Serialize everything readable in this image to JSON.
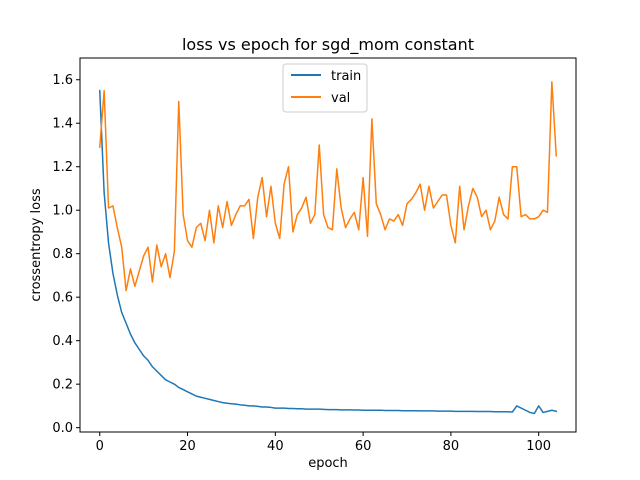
{
  "chart_data": {
    "type": "line",
    "title": "loss vs epoch for sgd_mom constant",
    "xlabel": "epoch",
    "ylabel": "crossentropy loss",
    "xlim": [
      -4.5,
      108.5
    ],
    "ylim": [
      -0.02,
      1.7
    ],
    "xticks": [
      0,
      20,
      40,
      60,
      80,
      100
    ],
    "yticks": [
      0.0,
      0.2,
      0.4,
      0.6,
      0.8,
      1.0,
      1.2,
      1.4,
      1.6
    ],
    "ytick_labels": [
      "0.0",
      "0.2",
      "0.4",
      "0.6",
      "0.8",
      "1.0",
      "1.2",
      "1.4",
      "1.6"
    ],
    "grid": false,
    "legend_position": "top-center",
    "series": [
      {
        "name": "train",
        "color": "#1f77b4",
        "x": [
          0,
          1,
          2,
          3,
          4,
          5,
          6,
          7,
          8,
          9,
          10,
          11,
          12,
          13,
          14,
          15,
          16,
          17,
          18,
          19,
          20,
          21,
          22,
          23,
          24,
          25,
          26,
          27,
          28,
          29,
          30,
          31,
          32,
          33,
          34,
          35,
          36,
          37,
          38,
          39,
          40,
          41,
          42,
          43,
          44,
          45,
          46,
          47,
          48,
          49,
          50,
          51,
          52,
          53,
          54,
          55,
          56,
          57,
          58,
          59,
          60,
          61,
          62,
          63,
          64,
          65,
          66,
          67,
          68,
          69,
          70,
          71,
          72,
          73,
          74,
          75,
          76,
          77,
          78,
          79,
          80,
          81,
          82,
          83,
          84,
          85,
          86,
          87,
          88,
          89,
          90,
          91,
          92,
          93,
          94,
          95,
          96,
          97,
          98,
          99,
          100,
          101,
          102,
          103,
          104
        ],
        "values": [
          1.55,
          1.08,
          0.85,
          0.71,
          0.61,
          0.53,
          0.48,
          0.43,
          0.39,
          0.36,
          0.33,
          0.31,
          0.28,
          0.26,
          0.24,
          0.22,
          0.21,
          0.2,
          0.185,
          0.175,
          0.165,
          0.155,
          0.145,
          0.14,
          0.135,
          0.13,
          0.125,
          0.12,
          0.115,
          0.112,
          0.11,
          0.108,
          0.105,
          0.103,
          0.1,
          0.1,
          0.098,
          0.095,
          0.095,
          0.093,
          0.09,
          0.09,
          0.09,
          0.088,
          0.088,
          0.087,
          0.087,
          0.085,
          0.085,
          0.085,
          0.085,
          0.084,
          0.083,
          0.083,
          0.083,
          0.082,
          0.082,
          0.082,
          0.081,
          0.081,
          0.08,
          0.08,
          0.08,
          0.08,
          0.08,
          0.079,
          0.079,
          0.079,
          0.079,
          0.078,
          0.078,
          0.078,
          0.078,
          0.077,
          0.077,
          0.077,
          0.077,
          0.076,
          0.076,
          0.076,
          0.076,
          0.075,
          0.075,
          0.075,
          0.075,
          0.075,
          0.074,
          0.074,
          0.074,
          0.074,
          0.073,
          0.073,
          0.073,
          0.073,
          0.072,
          0.1,
          0.09,
          0.08,
          0.07,
          0.065,
          0.1,
          0.07,
          0.075,
          0.08,
          0.075
        ]
      },
      {
        "name": "val",
        "color": "#ff7f0e",
        "x": [
          0,
          1,
          2,
          3,
          4,
          5,
          6,
          7,
          8,
          9,
          10,
          11,
          12,
          13,
          14,
          15,
          16,
          17,
          18,
          19,
          20,
          21,
          22,
          23,
          24,
          25,
          26,
          27,
          28,
          29,
          30,
          31,
          32,
          33,
          34,
          35,
          36,
          37,
          38,
          39,
          40,
          41,
          42,
          43,
          44,
          45,
          46,
          47,
          48,
          49,
          50,
          51,
          52,
          53,
          54,
          55,
          56,
          57,
          58,
          59,
          60,
          61,
          62,
          63,
          64,
          65,
          66,
          67,
          68,
          69,
          70,
          71,
          72,
          73,
          74,
          75,
          76,
          77,
          78,
          79,
          80,
          81,
          82,
          83,
          84,
          85,
          86,
          87,
          88,
          89,
          90,
          91,
          92,
          93,
          94,
          95,
          96,
          97,
          98,
          99,
          100,
          101,
          102,
          103,
          104
        ],
        "values": [
          1.29,
          1.55,
          1.01,
          1.02,
          0.92,
          0.83,
          0.63,
          0.73,
          0.65,
          0.72,
          0.79,
          0.83,
          0.67,
          0.84,
          0.74,
          0.8,
          0.69,
          0.81,
          1.5,
          0.98,
          0.86,
          0.83,
          0.92,
          0.94,
          0.86,
          1.0,
          0.85,
          1.02,
          0.92,
          1.04,
          0.93,
          0.98,
          1.02,
          1.02,
          1.05,
          0.87,
          1.06,
          1.15,
          0.97,
          1.11,
          0.94,
          0.87,
          1.12,
          1.2,
          0.9,
          0.98,
          1.01,
          1.06,
          0.94,
          0.98,
          1.3,
          0.98,
          0.92,
          0.91,
          1.19,
          1.01,
          0.92,
          0.96,
          0.99,
          0.91,
          1.15,
          0.88,
          1.42,
          1.03,
          0.98,
          0.91,
          0.96,
          0.95,
          0.98,
          0.93,
          1.03,
          1.05,
          1.08,
          1.12,
          1.0,
          1.11,
          1.01,
          1.04,
          1.07,
          1.07,
          0.93,
          0.85,
          1.11,
          0.91,
          1.02,
          1.1,
          1.06,
          0.97,
          1.0,
          0.91,
          0.95,
          1.06,
          0.98,
          0.96,
          1.2,
          1.2,
          0.97,
          0.98,
          0.96,
          0.96,
          0.97,
          1.0,
          0.99,
          1.59,
          1.25
        ]
      }
    ]
  }
}
